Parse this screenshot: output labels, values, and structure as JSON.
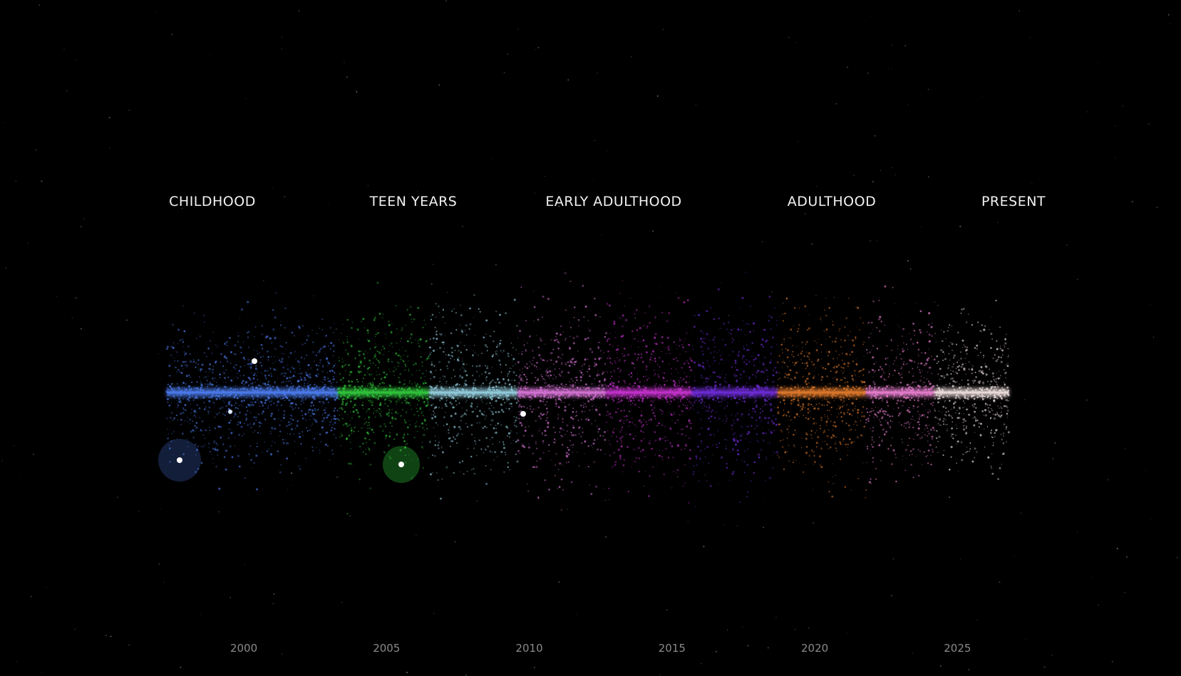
{
  "chart_data": {
    "type": "particle-timeline",
    "phases": [
      "CHILDHOOD",
      "TEEN YEARS",
      "EARLY ADULTHOOD",
      "ADULTHOOD",
      "PRESENT"
    ],
    "xlim": [
      1995,
      2030
    ],
    "xticks": [
      2000,
      2005,
      2010,
      2015,
      2020,
      2025
    ],
    "segments": [
      {
        "start": 1997.3,
        "end": 2003.3,
        "color": "#4a78e8"
      },
      {
        "start": 2003.3,
        "end": 2006.5,
        "color": "#2fc03a"
      },
      {
        "start": 2006.5,
        "end": 2009.6,
        "color": "#8fc8d8"
      },
      {
        "start": 2009.6,
        "end": 2012.7,
        "color": "#d070d0"
      },
      {
        "start": 2012.7,
        "end": 2015.7,
        "color": "#c030c8"
      },
      {
        "start": 2015.7,
        "end": 2018.7,
        "color": "#6a2ad0"
      },
      {
        "start": 2018.7,
        "end": 2021.8,
        "color": "#d8752a"
      },
      {
        "start": 2021.8,
        "end": 2024.2,
        "color": "#e07ac8"
      },
      {
        "start": 2024.2,
        "end": 2026.8,
        "color": "#e8d8d8"
      }
    ]
  }
}
